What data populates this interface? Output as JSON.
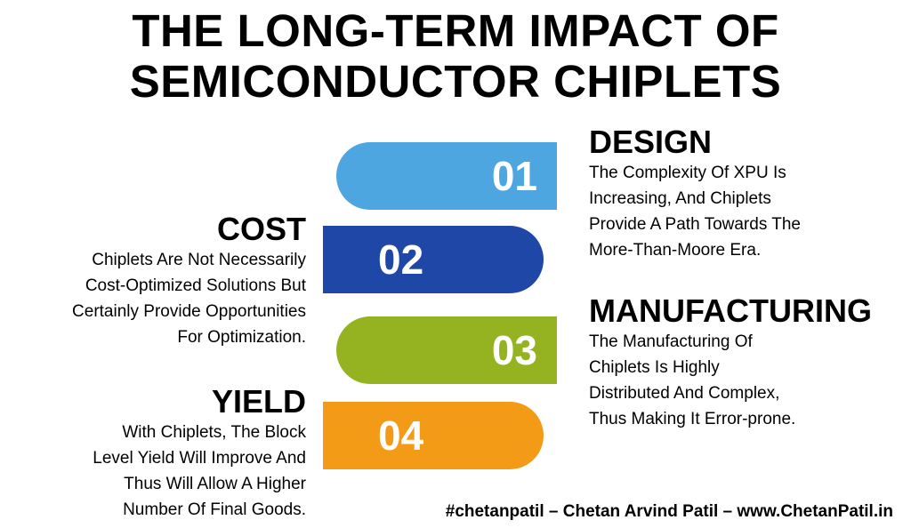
{
  "title": {
    "line1": "THE LONG-TERM IMPACT OF",
    "line2": "SEMICONDUCTOR CHIPLETS"
  },
  "pills": [
    {
      "number": "01",
      "color": "#4DA6E0"
    },
    {
      "number": "02",
      "color": "#1F47A8"
    },
    {
      "number": "03",
      "color": "#95B320"
    },
    {
      "number": "04",
      "color": "#F39A16"
    }
  ],
  "items": {
    "design": {
      "heading": "DESIGN",
      "lines": [
        "The Complexity Of XPU Is",
        "Increasing, And Chiplets",
        "Provide A Path Towards The",
        "More-Than-Moore Era."
      ]
    },
    "cost": {
      "heading": "COST",
      "lines": [
        "Chiplets Are Not Necessarily",
        "Cost-Optimized Solutions But",
        "Certainly Provide Opportunities",
        "For Optimization."
      ]
    },
    "manufacturing": {
      "heading": "MANUFACTURING",
      "lines": [
        "The Manufacturing Of",
        "Chiplets Is Highly",
        "Distributed And Complex,",
        "Thus Making It Error-prone."
      ]
    },
    "yield": {
      "heading": "YIELD",
      "lines": [
        "With Chiplets, The Block",
        "Level Yield Will Improve And",
        "Thus Will Allow A Higher",
        "Number Of Final Goods."
      ]
    }
  },
  "footer": "#chetanpatil – Chetan Arvind Patil – www.ChetanPatil.in"
}
